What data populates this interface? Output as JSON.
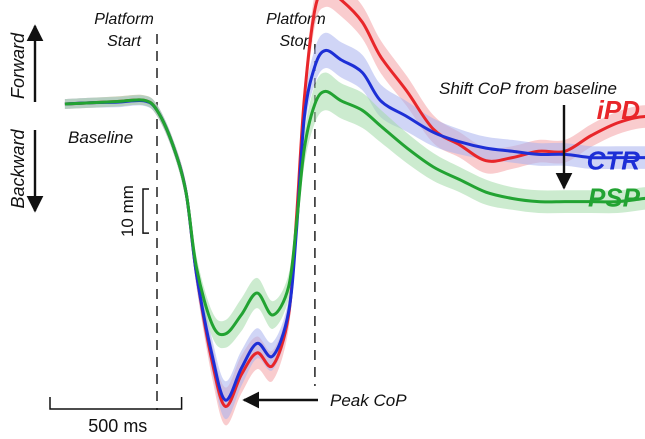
{
  "chart_data": {
    "type": "line",
    "time_unit": "ms",
    "y_unit": "mm",
    "y_positive_direction": "forward",
    "x": [
      -350,
      -250,
      -150,
      -50,
      0,
      60,
      110,
      150,
      210,
      260,
      320,
      380,
      440,
      500,
      530,
      560,
      600,
      640,
      700,
      780,
      850,
      950,
      1050,
      1150,
      1250,
      1350,
      1450,
      1550,
      1650,
      1750,
      1850,
      1950
    ],
    "series": [
      {
        "name": "iPD",
        "color": "#e8262a",
        "band_color": "#f4a3a6",
        "values": [
          0.0,
          0.2,
          0.4,
          0.6,
          -1.0,
          -6.5,
          -14.0,
          -27.0,
          -41.0,
          -48.0,
          -43.0,
          -39.5,
          -41.5,
          -33.5,
          -18.0,
          1.0,
          15.0,
          18.0,
          16.5,
          13.0,
          7.5,
          2.0,
          -4.0,
          -6.5,
          -9.0,
          -8.5,
          -7.5,
          -7.5,
          -5.0,
          -3.0,
          -2.0,
          -2.5
        ],
        "band_halfwidth": [
          0.8,
          0.8,
          0.8,
          0.8,
          0.9,
          1.0,
          1.4,
          2.0,
          2.6,
          3.0,
          3.0,
          2.6,
          2.4,
          2.2,
          2.2,
          2.4,
          2.6,
          2.6,
          2.6,
          2.6,
          2.6,
          2.4,
          2.2,
          2.0,
          2.0,
          1.8,
          1.8,
          1.8,
          1.8,
          1.8,
          1.8,
          1.8
        ]
      },
      {
        "name": "CTR",
        "color": "#1d2fd6",
        "band_color": "#a9b2ee",
        "values": [
          0.0,
          0.2,
          0.3,
          0.5,
          -1.0,
          -6.5,
          -14.0,
          -27.0,
          -40.0,
          -47.0,
          -42.0,
          -38.0,
          -40.0,
          -33.0,
          -20.0,
          -2.0,
          6.0,
          8.5,
          7.0,
          5.0,
          0.5,
          -2.0,
          -4.5,
          -6.0,
          -7.0,
          -7.5,
          -8.0,
          -8.0,
          -8.5,
          -8.5,
          -8.5,
          -8.5
        ],
        "band_halfwidth": [
          0.8,
          0.8,
          0.8,
          0.8,
          0.9,
          1.0,
          1.4,
          2.0,
          2.6,
          3.0,
          2.8,
          2.4,
          2.2,
          2.0,
          2.2,
          2.4,
          2.8,
          2.8,
          2.8,
          2.8,
          2.6,
          2.4,
          2.2,
          2.0,
          1.8,
          1.8,
          1.8,
          1.8,
          1.8,
          1.8,
          1.8,
          1.8
        ]
      },
      {
        "name": "PSP",
        "color": "#22a332",
        "band_color": "#a3dba8",
        "values": [
          0.0,
          0.2,
          0.4,
          0.6,
          -1.0,
          -6.5,
          -14.0,
          -26.0,
          -35.0,
          -36.5,
          -33.5,
          -30.0,
          -33.5,
          -29.0,
          -19.0,
          -7.0,
          0.0,
          2.0,
          0.5,
          -1.0,
          -3.5,
          -7.0,
          -10.0,
          -12.0,
          -14.0,
          -15.0,
          -15.5,
          -15.5,
          -15.5,
          -15.5,
          -15.0,
          -14.5
        ],
        "band_halfwidth": [
          0.8,
          0.8,
          0.8,
          0.8,
          0.9,
          1.0,
          1.4,
          1.8,
          2.0,
          2.2,
          2.6,
          2.4,
          2.2,
          2.0,
          2.2,
          2.6,
          3.0,
          3.0,
          2.8,
          2.8,
          2.6,
          2.4,
          2.2,
          2.0,
          2.0,
          1.8,
          1.8,
          1.8,
          1.8,
          1.8,
          1.8,
          1.8
        ]
      }
    ],
    "events": {
      "start": {
        "x": 0,
        "label": "Platform Start"
      },
      "stop": {
        "x": 600,
        "label": "Platform Stop"
      }
    },
    "annotations": {
      "baseline": "Baseline",
      "peak": "Peak CoP",
      "shift": "Shift CoP from baseline",
      "forward": "Forward",
      "backward": "Backward"
    },
    "scale_bars": {
      "time": {
        "value": 500,
        "label": "500 ms"
      },
      "amplitude": {
        "value": 10,
        "label": "10 mm"
      }
    },
    "grid": false,
    "legend_placement": "right, at line ends"
  }
}
